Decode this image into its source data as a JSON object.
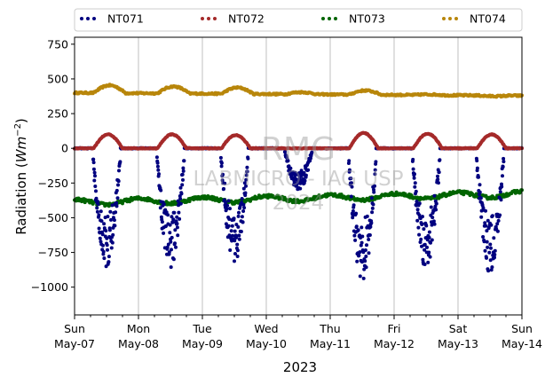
{
  "chart_data": {
    "type": "scatter",
    "ylabel_main": "Radiation (",
    "ylabel_var": "Wm",
    "ylabel_exp": "−2",
    "ylabel_close": ")",
    "xlabel": "2023",
    "ylim": [
      -1200,
      800
    ],
    "xlim": [
      0,
      7
    ],
    "grid": "vertical",
    "legend_placement": "top",
    "y_ticks": [
      {
        "value": 750,
        "label": "750"
      },
      {
        "value": 500,
        "label": "500"
      },
      {
        "value": 250,
        "label": "250"
      },
      {
        "value": 0,
        "label": "0"
      },
      {
        "value": -250,
        "label": "−250"
      },
      {
        "value": -500,
        "label": "−500"
      },
      {
        "value": -750,
        "label": "−750"
      },
      {
        "value": -1000,
        "label": "−1000"
      }
    ],
    "x_ticks": [
      {
        "value": 0,
        "day": "Sun",
        "date": "May-07"
      },
      {
        "value": 1,
        "day": "Mon",
        "date": "May-08"
      },
      {
        "value": 2,
        "day": "Tue",
        "date": "May-09"
      },
      {
        "value": 3,
        "day": "Wed",
        "date": "May-10"
      },
      {
        "value": 4,
        "day": "Thu",
        "date": "May-11"
      },
      {
        "value": 5,
        "day": "Fri",
        "date": "May-12"
      },
      {
        "value": 6,
        "day": "Sat",
        "date": "May-13"
      },
      {
        "value": 7,
        "day": "Sun",
        "date": "May-14"
      }
    ],
    "series": [
      {
        "name": "NT071",
        "color": "#00007f",
        "baseline": 0,
        "daily_min": [
          -860,
          -870,
          -820,
          -300,
          -950,
          -870,
          -900
        ]
      },
      {
        "name": "NT072",
        "color": "#a52a2a",
        "baseline": 0,
        "daily_max": [
          100,
          100,
          95,
          0,
          110,
          105,
          100
        ]
      },
      {
        "name": "NT073",
        "color": "#006400",
        "start": -390,
        "end": -330
      },
      {
        "name": "NT074",
        "color": "#b8860b",
        "baseline": 400,
        "daily_peak": [
          455,
          450,
          445,
          415,
          430,
          405,
          395
        ]
      }
    ],
    "watermark": [
      "RMG",
      "LABMICRO - IAG USP",
      "2024"
    ]
  }
}
